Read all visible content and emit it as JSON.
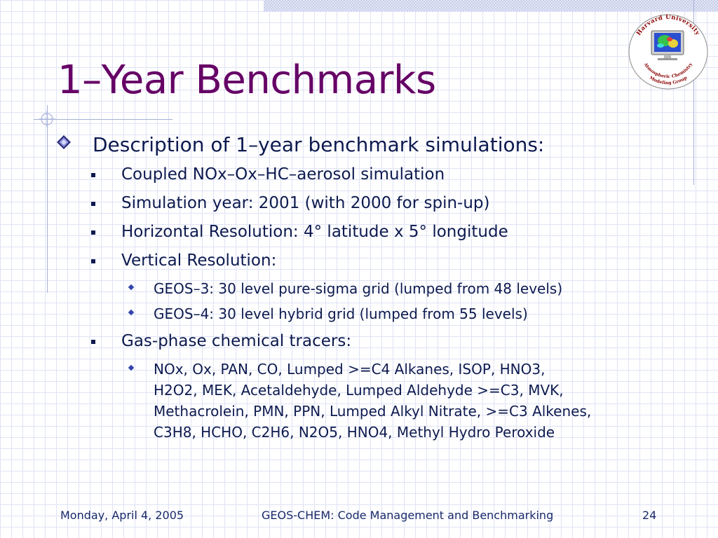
{
  "slide": {
    "title": "1–Year Benchmarks",
    "logo": {
      "top_text": "Harvard University",
      "bottom_text_line1": "Atmospheric Chemistry",
      "bottom_text_line2": "Modeling Group"
    },
    "bullets": {
      "main": "Description of 1–year benchmark simulations:",
      "coupled": "Coupled NOx–Ox–HC–aerosol simulation",
      "year": "Simulation year: 2001 (with 2000 for spin-up)",
      "horizontal": "Horizontal Resolution: 4° latitude x 5° longitude",
      "vertical": "Vertical Resolution:",
      "geos3": "GEOS–3: 30 level pure-sigma grid (lumped from 48 levels)",
      "geos4": "GEOS–4: 30 level hybrid grid (lumped from 55 levels)",
      "gasphase": "Gas-phase chemical tracers:",
      "tracers_line1": "NOx, Ox, PAN, CO, Lumped >=C4 Alkanes, ISOP, HNO3,",
      "tracers_line2": "H2O2, MEK, Acetaldehyde, Lumped Aldehyde >=C3, MVK,",
      "tracers_line3": "Methacrolein, PMN, PPN, Lumped Alkyl Nitrate, >=C3 Alkenes,",
      "tracers_line4": "C3H8, HCHO, C2H6, N2O5, HNO4, Methyl Hydro Peroxide"
    },
    "footer": {
      "date": "Monday, April 4, 2005",
      "center": "GEOS-CHEM: Code Management and Benchmarking",
      "page": "24"
    },
    "colors": {
      "title": "#660066",
      "text": "#0d1a4f",
      "grid": "#dfe3f5",
      "accent": "#3344aa"
    }
  }
}
